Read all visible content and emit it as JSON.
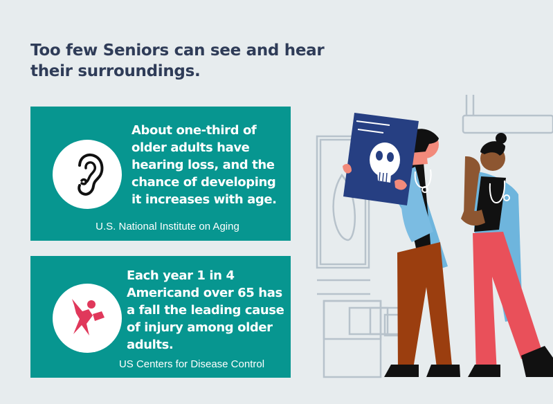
{
  "headline": "Too few Seniors can see and hear their surroundings.",
  "cards": [
    {
      "icon": "ear-icon",
      "stat": "About one-third of older adults have hearing loss, and the chance of developing it increases with age.",
      "source": "U.S. National Institute on Aging"
    },
    {
      "icon": "falling-person-icon",
      "stat": "Each year 1 in 4 Americand over 65 has a fall the leading cause of injury among older adults.",
      "source": "US Centers for Disease Control"
    }
  ],
  "colors": {
    "background": "#e7ecee",
    "card": "#079690",
    "headline": "#2f3c58",
    "fall_icon": "#e0385b"
  }
}
